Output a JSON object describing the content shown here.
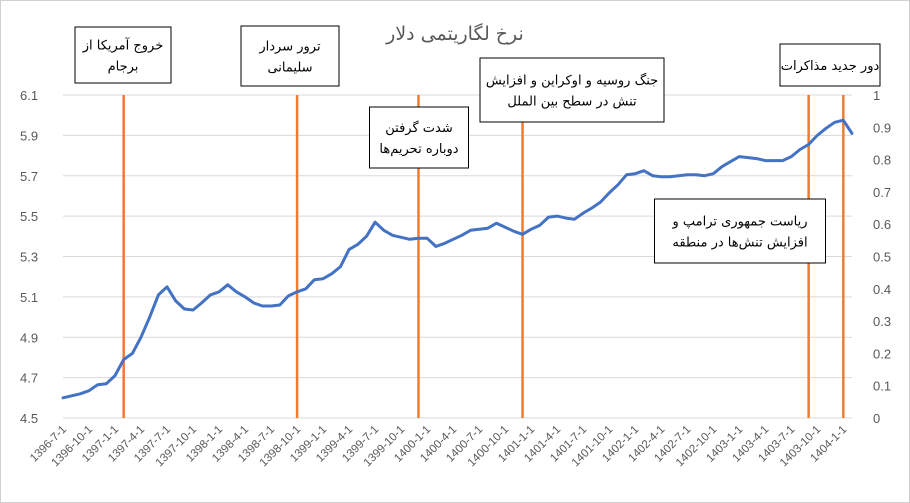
{
  "chart_data": {
    "type": "line",
    "title": "نرخ لگاریتمی دلار",
    "xlabel": "",
    "ylabel": "",
    "ylim": [
      4.5,
      6.1
    ],
    "y_ticks": [
      "4.5",
      "4.7",
      "4.9",
      "5.1",
      "5.3",
      "5.5",
      "5.7",
      "5.9",
      "6.1"
    ],
    "y2lim": [
      0,
      1
    ],
    "y2_ticks": [
      "0",
      "0.1",
      "0.2",
      "0.3",
      "0.4",
      "0.5",
      "0.6",
      "0.7",
      "0.8",
      "0.9",
      "1"
    ],
    "x_tick_labels": [
      "1396-7-1",
      "1396-10-1",
      "1397-1-1",
      "1397-4-1",
      "1397-7-1",
      "1397-10-1",
      "1398-1-1",
      "1398-4-1",
      "1398-7-1",
      "1398-10-1",
      "1399-1-1",
      "1399-4-1",
      "1399-7-1",
      "1399-10-1",
      "1400-1-1",
      "1400-4-1",
      "1400-7-1",
      "1400-10-1",
      "1401-1-1",
      "1401-4-1",
      "1401-7-1",
      "1401-10-1",
      "1402-1-1",
      "1402-4-1",
      "1402-7-1",
      "1402-10-1",
      "1403-1-1",
      "1403-4-1",
      "1403-7-1",
      "1403-10-1",
      "1404-1-1"
    ],
    "grid": true,
    "legend": "none",
    "series": [
      {
        "color": "#4472c4",
        "points": [
          [
            "1396-7-1",
            4.6
          ],
          [
            "1396-8-1",
            4.61
          ],
          [
            "1396-9-1",
            4.62
          ],
          [
            "1396-10-1",
            4.635
          ],
          [
            "1396-11-1",
            4.665
          ],
          [
            "1396-12-1",
            4.67
          ],
          [
            "1397-1-1",
            4.71
          ],
          [
            "1397-2-1",
            4.79
          ],
          [
            "1397-3-1",
            4.82
          ],
          [
            "1397-4-1",
            4.9
          ],
          [
            "1397-5-1",
            5.0
          ],
          [
            "1397-6-1",
            5.11
          ],
          [
            "1397-7-1",
            5.15
          ],
          [
            "1397-8-1",
            5.08
          ],
          [
            "1397-9-1",
            5.04
          ],
          [
            "1397-10-1",
            5.035
          ],
          [
            "1397-11-1",
            5.07
          ],
          [
            "1397-12-1",
            5.11
          ],
          [
            "1398-1-1",
            5.125
          ],
          [
            "1398-2-1",
            5.16
          ],
          [
            "1398-3-1",
            5.125
          ],
          [
            "1398-4-1",
            5.1
          ],
          [
            "1398-5-1",
            5.07
          ],
          [
            "1398-6-1",
            5.055
          ],
          [
            "1398-7-1",
            5.055
          ],
          [
            "1398-8-1",
            5.06
          ],
          [
            "1398-9-1",
            5.105
          ],
          [
            "1398-10-1",
            5.125
          ],
          [
            "1398-11-1",
            5.14
          ],
          [
            "1398-12-1",
            5.185
          ],
          [
            "1399-1-1",
            5.19
          ],
          [
            "1399-2-1",
            5.215
          ],
          [
            "1399-3-1",
            5.25
          ],
          [
            "1399-4-1",
            5.335
          ],
          [
            "1399-5-1",
            5.36
          ],
          [
            "1399-6-1",
            5.4
          ],
          [
            "1399-7-1",
            5.47
          ],
          [
            "1399-8-1",
            5.43
          ],
          [
            "1399-9-1",
            5.405
          ],
          [
            "1399-10-1",
            5.395
          ],
          [
            "1399-11-1",
            5.385
          ],
          [
            "1399-12-1",
            5.39
          ],
          [
            "1400-1-1",
            5.39
          ],
          [
            "1400-2-1",
            5.35
          ],
          [
            "1400-3-1",
            5.365
          ],
          [
            "1400-4-1",
            5.385
          ],
          [
            "1400-5-1",
            5.405
          ],
          [
            "1400-6-1",
            5.43
          ],
          [
            "1400-7-1",
            5.435
          ],
          [
            "1400-8-1",
            5.44
          ],
          [
            "1400-9-1",
            5.465
          ],
          [
            "1400-10-1",
            5.445
          ],
          [
            "1400-11-1",
            5.425
          ],
          [
            "1400-12-1",
            5.41
          ],
          [
            "1401-1-1",
            5.435
          ],
          [
            "1401-2-1",
            5.455
          ],
          [
            "1401-3-1",
            5.495
          ],
          [
            "1401-4-1",
            5.5
          ],
          [
            "1401-5-1",
            5.49
          ],
          [
            "1401-6-1",
            5.485
          ],
          [
            "1401-7-1",
            5.515
          ],
          [
            "1401-8-1",
            5.54
          ],
          [
            "1401-9-1",
            5.57
          ],
          [
            "1401-10-1",
            5.615
          ],
          [
            "1401-11-1",
            5.655
          ],
          [
            "1401-12-1",
            5.705
          ],
          [
            "1402-1-1",
            5.71
          ],
          [
            "1402-2-1",
            5.725
          ],
          [
            "1402-3-1",
            5.7
          ],
          [
            "1402-4-1",
            5.695
          ],
          [
            "1402-5-1",
            5.695
          ],
          [
            "1402-6-1",
            5.7
          ],
          [
            "1402-7-1",
            5.705
          ],
          [
            "1402-8-1",
            5.705
          ],
          [
            "1402-9-1",
            5.7
          ],
          [
            "1402-10-1",
            5.71
          ],
          [
            "1402-11-1",
            5.745
          ],
          [
            "1402-12-1",
            5.77
          ],
          [
            "1403-1-1",
            5.795
          ],
          [
            "1403-2-1",
            5.79
          ],
          [
            "1403-3-1",
            5.785
          ],
          [
            "1403-4-1",
            5.775
          ],
          [
            "1403-5-1",
            5.775
          ],
          [
            "1403-6-1",
            5.775
          ],
          [
            "1403-7-1",
            5.795
          ],
          [
            "1403-8-1",
            5.83
          ],
          [
            "1403-9-1",
            5.855
          ],
          [
            "1403-10-1",
            5.9
          ],
          [
            "1403-11-1",
            5.935
          ],
          [
            "1403-12-1",
            5.965
          ],
          [
            "1404-1-1",
            5.975
          ],
          [
            "1404-2-1",
            5.91
          ]
        ]
      }
    ],
    "vertical_markers": [
      {
        "x": "1397-2-1",
        "color": "#ed7d31"
      },
      {
        "x": "1398-10-1",
        "color": "#ed7d31"
      },
      {
        "x": "1399-12-1",
        "color": "#ed7d31"
      },
      {
        "x": "1400-12-1",
        "color": "#ed7d31"
      },
      {
        "x": "1403-9-1",
        "color": "#ed7d31"
      },
      {
        "x": "1404-1-1",
        "color": "#ed7d31"
      }
    ],
    "annotations": [
      {
        "lines": [
          "خروج آمریکا از",
          "برجام"
        ]
      },
      {
        "lines": [
          "ترور سردار",
          "سلیمانی"
        ]
      },
      {
        "lines": [
          "شدت گرفتن",
          "دوباره تحریم‌ها"
        ]
      },
      {
        "lines": [
          "جنگ روسیه و اوکراین و افزایش",
          "تنش در سطح بین الملل"
        ]
      },
      {
        "lines": [
          "ریاست جمهوری ترامپ  و",
          "افزایش تنش‌ها در منطقه"
        ]
      },
      {
        "lines": [
          "دور جدید مذاکرات"
        ]
      }
    ]
  }
}
